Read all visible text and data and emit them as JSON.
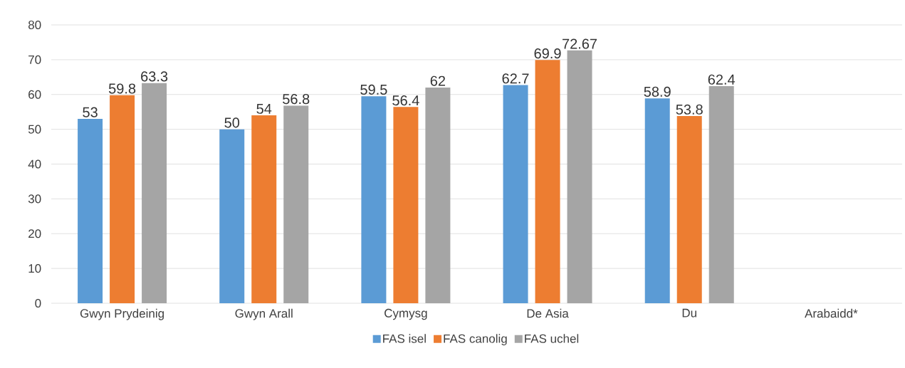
{
  "chart_data": {
    "type": "bar",
    "categories": [
      "Gwyn Prydeinig",
      "Gwyn Arall",
      "Cymysg",
      "De Asia",
      "Du",
      "Arabaidd*"
    ],
    "series": [
      {
        "name": "FAS isel",
        "color": "#5b9bd5",
        "values": [
          53,
          50,
          59.5,
          62.7,
          58.9,
          null
        ]
      },
      {
        "name": "FAS canolig",
        "color": "#ed7d31",
        "values": [
          59.8,
          54,
          56.4,
          69.9,
          53.8,
          null
        ]
      },
      {
        "name": "FAS uchel",
        "color": "#a5a5a5",
        "values": [
          63.3,
          56.8,
          62,
          72.67,
          62.4,
          null
        ]
      }
    ],
    "ylim": [
      0,
      80
    ],
    "yticks": [
      0,
      10,
      20,
      30,
      40,
      50,
      60,
      70,
      80
    ],
    "grid": "y",
    "legend": "bottom",
    "data_labels": true
  }
}
